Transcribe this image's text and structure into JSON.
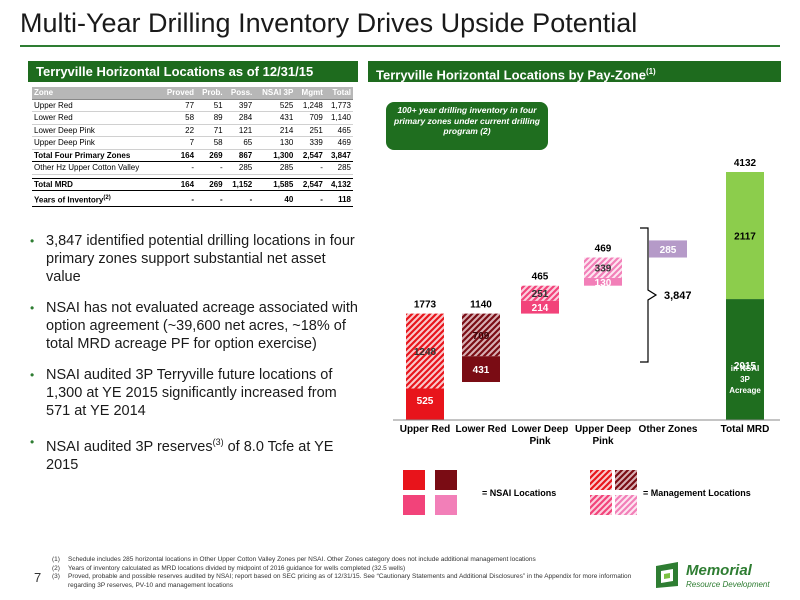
{
  "title": "Multi-Year Drilling Inventory Drives Upside Potential",
  "left_header": "Terryville Horizontal Locations as of 12/31/15",
  "right_header": {
    "text": "Terryville Horizontal Locations by Pay-Zone",
    "sup": "(1)"
  },
  "table": {
    "headers": [
      "Zone",
      "Proved",
      "Prob.",
      "Poss.",
      "NSAI 3P",
      "Mgmt",
      "Total"
    ],
    "rows": [
      [
        "Upper Red",
        "77",
        "51",
        "397",
        "525",
        "1,248",
        "1,773"
      ],
      [
        "Lower Red",
        "58",
        "89",
        "284",
        "431",
        "709",
        "1,140"
      ],
      [
        "Lower Deep Pink",
        "22",
        "71",
        "121",
        "214",
        "251",
        "465"
      ],
      [
        "Upper Deep Pink",
        "7",
        "58",
        "65",
        "130",
        "339",
        "469"
      ]
    ],
    "total_row": [
      "Total Four Primary Zones",
      "164",
      "269",
      "867",
      "1,300",
      "2,547",
      "3,847"
    ],
    "other_row": [
      "Other Hz Upper Cotton Valley",
      "-",
      "-",
      "285",
      "285",
      "-",
      "285"
    ],
    "mrd_row": [
      "Total MRD",
      "164",
      "269",
      "1,152",
      "1,585",
      "2,547",
      "4,132"
    ],
    "years_row": {
      "label": "Years of Inventory",
      "sup": "(2)",
      "values": [
        "-",
        "-",
        "-",
        "40",
        "-",
        "118"
      ]
    }
  },
  "bullets": [
    {
      "text": "3,847 identified potential drilling locations in four primary zones support substantial net asset value"
    },
    {
      "text": "NSAI has not evaluated acreage associated with option agreement (~39,600 net acres, ~18% of total MRD acreage PF for option exercise)"
    },
    {
      "text": "NSAI audited 3P Terryville future locations of 1,300 at YE 2015 significantly increased from 571 at YE 2014"
    },
    {
      "text": "NSAI audited 3P reserves",
      "sup": "(3)",
      "after": " of 8.0 Tcfe at YE 2015"
    }
  ],
  "chart_data": {
    "type": "bar",
    "stacked": true,
    "categories": [
      "Upper Red",
      "Lower Red",
      "Lower Deep Pink",
      "Upper Deep Pink",
      "Other Zones",
      "Total MRD"
    ],
    "series": [
      {
        "name": "NSAI Locations",
        "values": [
          525,
          431,
          214,
          130,
          285,
          2015
        ]
      },
      {
        "name": "Management Locations",
        "values": [
          1248,
          709,
          251,
          339,
          0,
          2117
        ]
      }
    ],
    "totals": [
      1773,
      1140,
      465,
      469,
      285,
      4132
    ],
    "bar_offsets": [
      0,
      633,
      1773,
      2238,
      2707,
      0
    ],
    "ylim": [
      0,
      4132
    ],
    "callout": "100+ year drilling inventory in four primary zones under current drilling program (2)",
    "bracket_label": "3,847",
    "total_bar_note": [
      "in NSAI",
      "3P",
      "Acreage"
    ],
    "legend": [
      "= NSAI Locations",
      "= Management Locations"
    ],
    "colors": {
      "upper_red": "#e8141b",
      "lower_red": "#7a0c14",
      "lower_deep_pink": "#f2437a",
      "upper_deep_pink": "#f27fb8",
      "other": "#b59ac8",
      "total_nsai": "#1f6e1f",
      "total_mgmt": "#8ccd4c"
    }
  },
  "footnotes": [
    {
      "n": "(1)",
      "text": "Schedule includes 285 horizontal locations in Other Upper Cotton Valley Zones per NSAI. Other Zones category does not include additional management locations"
    },
    {
      "n": "(2)",
      "text": "Years of inventory calculated as MRD locations divided by midpoint of 2016 guidance for wells completed (32.5 wells)"
    },
    {
      "n": "(3)",
      "text": "Proved, probable and possible reserves audited by NSAI; report based on SEC pricing as of 12/31/15. See “Cautionary Statements and Additional Disclosures” in the Appendix for more information regarding 3P reserves, PV-10 and management locations"
    }
  ],
  "page_number": "7",
  "logo": {
    "name": "Memorial",
    "sub": "Resource Development"
  }
}
